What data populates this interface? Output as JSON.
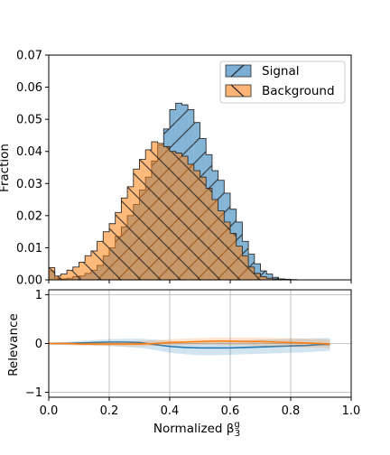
{
  "chart_data": [
    {
      "type": "histogram",
      "title": "",
      "xlabel": "",
      "ylabel": "Fraction",
      "xlim": [
        0,
        1
      ],
      "ylim": [
        0,
        0.07
      ],
      "x_ticks": [
        "0.0",
        "0.2",
        "0.4",
        "0.6",
        "0.8",
        "1.0"
      ],
      "y_ticks": [
        "0.00",
        "0.01",
        "0.02",
        "0.03",
        "0.04",
        "0.05",
        "0.06",
        "0.07"
      ],
      "y_tick_values": [
        0,
        0.01,
        0.02,
        0.03,
        0.04,
        0.05,
        0.06,
        0.07
      ],
      "bin_width": 0.02,
      "bin_start": 0.0,
      "legend_position": "top-right",
      "series": [
        {
          "name": "Signal",
          "color": "#1f77b4",
          "hatch": "/",
          "values": [
            0.0028,
            0.0006,
            0.0003,
            0.0005,
            0.001,
            0.0012,
            0.002,
            0.003,
            0.0045,
            0.0075,
            0.01,
            0.0135,
            0.0165,
            0.02,
            0.0235,
            0.028,
            0.032,
            0.037,
            0.042,
            0.047,
            0.053,
            0.055,
            0.0545,
            0.053,
            0.049,
            0.044,
            0.039,
            0.034,
            0.031,
            0.027,
            0.022,
            0.018,
            0.012,
            0.008,
            0.005,
            0.0028,
            0.0018,
            0.0008,
            0.0003,
            0.0002,
            0.0001,
            0.0,
            0.0,
            0.0,
            0.0,
            0.0,
            0.0,
            0.0,
            0.0,
            0.0
          ]
        },
        {
          "name": "Background",
          "color": "#ff7f0e",
          "hatch": "\\",
          "values": [
            0.0038,
            0.0012,
            0.0018,
            0.003,
            0.004,
            0.0055,
            0.0075,
            0.009,
            0.012,
            0.015,
            0.0175,
            0.021,
            0.0255,
            0.029,
            0.0345,
            0.0375,
            0.0405,
            0.043,
            0.0425,
            0.0415,
            0.04,
            0.0395,
            0.0385,
            0.036,
            0.034,
            0.032,
            0.0285,
            0.025,
            0.0215,
            0.018,
            0.0145,
            0.0105,
            0.0075,
            0.004,
            0.002,
            0.001,
            0.0005,
            0.0003,
            0.0002,
            0.0001,
            0.0,
            0.0,
            0.0,
            0.0,
            0.0,
            0.0,
            0.0,
            0.0,
            0.0,
            0.0
          ]
        }
      ]
    },
    {
      "type": "line",
      "title": "",
      "xlabel": "Normalized β",
      "xlabel_sub": "3",
      "xlabel_sup": "g",
      "ylabel": "Relevance",
      "xlim": [
        0,
        1
      ],
      "ylim": [
        -1.1,
        1.1
      ],
      "x_ticks": [
        "0.0",
        "0.2",
        "0.4",
        "0.6",
        "0.8",
        "1.0"
      ],
      "y_ticks": [
        "1",
        "0",
        "−1"
      ],
      "y_tick_values": [
        1,
        0,
        -1
      ],
      "grid": true,
      "series": [
        {
          "name": "Signal",
          "color": "#1f77b4",
          "x": [
            0.0,
            0.05,
            0.1,
            0.15,
            0.2,
            0.25,
            0.3,
            0.35,
            0.4,
            0.45,
            0.5,
            0.55,
            0.6,
            0.65,
            0.7,
            0.75,
            0.8,
            0.85,
            0.9,
            0.93
          ],
          "values": [
            0.0,
            0.0,
            0.01,
            0.02,
            0.03,
            0.03,
            0.02,
            -0.02,
            -0.06,
            -0.08,
            -0.09,
            -0.09,
            -0.09,
            -0.08,
            -0.07,
            -0.06,
            -0.05,
            -0.04,
            -0.02,
            -0.02
          ],
          "band_low": [
            -0.02,
            -0.03,
            -0.03,
            -0.04,
            -0.05,
            -0.07,
            -0.09,
            -0.13,
            -0.19,
            -0.22,
            -0.24,
            -0.24,
            -0.23,
            -0.22,
            -0.21,
            -0.2,
            -0.19,
            -0.18,
            -0.16,
            -0.15
          ],
          "band_high": [
            0.02,
            0.03,
            0.05,
            0.07,
            0.09,
            0.1,
            0.1,
            0.08,
            0.05,
            0.04,
            0.04,
            0.05,
            0.06,
            0.07,
            0.08,
            0.09,
            0.1,
            0.1,
            0.11,
            0.11
          ]
        },
        {
          "name": "Background",
          "color": "#ff7f0e",
          "x": [
            0.0,
            0.05,
            0.1,
            0.15,
            0.2,
            0.25,
            0.3,
            0.35,
            0.4,
            0.45,
            0.5,
            0.55,
            0.6,
            0.65,
            0.7,
            0.75,
            0.8,
            0.85,
            0.9,
            0.93
          ],
          "values": [
            0.0,
            0.0,
            -0.01,
            -0.01,
            -0.01,
            -0.01,
            -0.01,
            0.0,
            0.02,
            0.03,
            0.04,
            0.05,
            0.05,
            0.04,
            0.04,
            0.03,
            0.02,
            0.01,
            0.0,
            -0.01
          ],
          "band_low": [
            -0.02,
            -0.03,
            -0.04,
            -0.05,
            -0.05,
            -0.06,
            -0.06,
            -0.05,
            -0.04,
            -0.03,
            -0.03,
            -0.03,
            -0.04,
            -0.04,
            -0.05,
            -0.06,
            -0.07,
            -0.08,
            -0.09,
            -0.1
          ],
          "band_high": [
            0.02,
            0.03,
            0.02,
            0.03,
            0.04,
            0.04,
            0.05,
            0.07,
            0.09,
            0.1,
            0.11,
            0.12,
            0.12,
            0.12,
            0.12,
            0.11,
            0.11,
            0.1,
            0.09,
            0.08
          ]
        }
      ]
    }
  ]
}
